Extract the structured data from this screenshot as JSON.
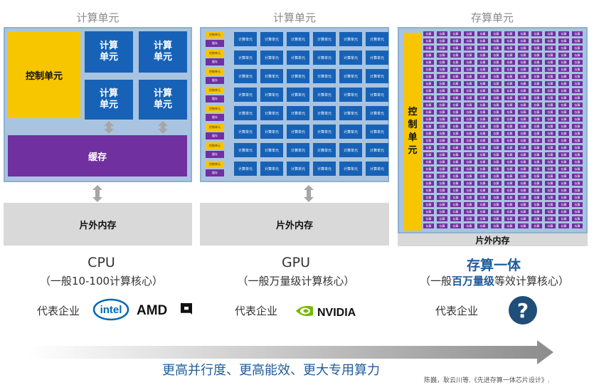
{
  "columns": {
    "cpu": {
      "title": "计算单元",
      "control": "控制单元",
      "compute_unit": "计算单元",
      "cache": "缓存",
      "memory": "片外内存",
      "name": "CPU",
      "desc": "（一般10-100计算核心）",
      "rep_label": "代表企业",
      "logos": [
        "intel",
        "AMD"
      ]
    },
    "gpu": {
      "title": "计算单元",
      "mini_control": "控制单元",
      "mini_cache": "缓存",
      "mini_compute": "计算单元",
      "memory": "片外内存",
      "name": "GPU",
      "desc": "（一般万量级计算核心）",
      "rep_label": "代表企业",
      "logos": [
        "NVIDIA"
      ]
    },
    "pim": {
      "title": "存算单元",
      "control": "控制单元",
      "cell": "存算",
      "memory": "片外内存",
      "name": "存算一体",
      "desc_prefix": "（一般",
      "desc_highlight": "百万量级",
      "desc_suffix": "等效计算核心）",
      "rep_label": "代表企业",
      "unknown_icon": "?"
    }
  },
  "footer": {
    "tagline": "更高并行度、更高能效、更大专用算力",
    "citation": "陈巍，耿云川等.《先进存算一体芯片设计》."
  },
  "colors": {
    "panel": "#a9c4e0",
    "control": "#f7c600",
    "compute": "#1762b6",
    "cache": "#7030a0",
    "memory": "#d9d9d9",
    "accent": "#1f5c99"
  }
}
